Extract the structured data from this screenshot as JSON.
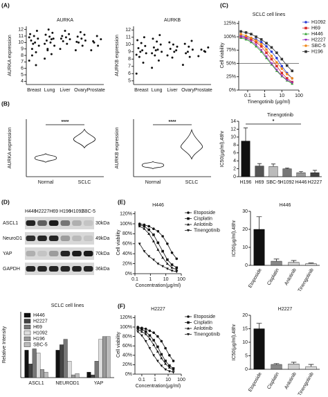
{
  "panel_labels": [
    "(A)",
    "(B)",
    "(C)",
    "(D)",
    "(E)",
    "(F)"
  ],
  "blot": {
    "columns": [
      "H446",
      "H2227",
      "H69",
      "H196",
      "H1092",
      "SBC-5"
    ],
    "rows": [
      "ASCL1",
      "NeuroD1",
      "YAP",
      "GAPDH"
    ],
    "kda": [
      "30kDa",
      "49kDa",
      "70kDa",
      "36kDa"
    ]
  },
  "chart_data": [
    {
      "type": "strip",
      "title": "AURKA",
      "ylabel": "AURKA expression",
      "categories": [
        "Breast",
        "Lung",
        "Liver",
        "Ovary",
        "Prostate"
      ],
      "values": [
        [
          7.2,
          8.5,
          9,
          9.5,
          10,
          10.3,
          10.6,
          11,
          11.3,
          11.8,
          9.8,
          10.8,
          6.5,
          8
        ],
        [
          7.5,
          8.2,
          9,
          9.5,
          10,
          10.3,
          10.6,
          10.9,
          11.2,
          11.5,
          12,
          9.8,
          10.5,
          8.8
        ],
        [
          9,
          9.8,
          10.2,
          10.5,
          10.8,
          11,
          11.3,
          11.8,
          10.6
        ],
        [
          8.8,
          9.5,
          10,
          10.3,
          10.6,
          10.9,
          11.2,
          11.6,
          10.1
        ],
        [
          8.8,
          9.5,
          10,
          10.5,
          11,
          10.2
        ]
      ],
      "ylim": [
        3.5,
        12.5
      ],
      "yticks": [
        4,
        5,
        6,
        7,
        8,
        9,
        10,
        11,
        12
      ],
      "color": "#111111"
    },
    {
      "type": "strip",
      "title": "AURKB",
      "ylabel": "AURKB expression",
      "categories": [
        "Breast",
        "Lung",
        "Liver",
        "Ovary",
        "Prostate"
      ],
      "values": [
        [
          6,
          7.5,
          8.3,
          8.8,
          9.2,
          9.5,
          9.8,
          10.2,
          10.6,
          11,
          9,
          8.6
        ],
        [
          6.8,
          7.8,
          8.5,
          9,
          9.3,
          9.6,
          10,
          10.4,
          10.8,
          11.3,
          9.2,
          8.8
        ],
        [
          8.5,
          9,
          9.4,
          9.7,
          10,
          10.3,
          9.2,
          8.2
        ],
        [
          7.2,
          8.3,
          8.8,
          9.3,
          9.7,
          10.1,
          10.5,
          9
        ],
        [
          8.4,
          9,
          9.3,
          9.6,
          9.1
        ]
      ],
      "ylim": [
        4.5,
        12.5
      ],
      "yticks": [
        5,
        6,
        7,
        8,
        9,
        10,
        11,
        12
      ],
      "color": "#111111"
    },
    {
      "type": "violin",
      "ylabel": "AURKA  expression",
      "categories": [
        "Normal",
        "SCLC"
      ],
      "values": [
        [
          5.0,
          5.6,
          6.2
        ],
        [
          7.0,
          8.2,
          9.6
        ]
      ],
      "ylim": [
        3,
        11
      ],
      "annotation": "****"
    },
    {
      "type": "violin",
      "ylabel": "AURKB  expression",
      "categories": [
        "Normal",
        "SCLC"
      ],
      "values": [
        [
          3.9,
          4.3,
          4.7
        ],
        [
          5.0,
          6.4,
          8.3
        ]
      ],
      "ylim": [
        3,
        9.5
      ],
      "annotation": "****"
    },
    {
      "type": "line",
      "title": "SCLC cell  lines",
      "xlabel": "Tinengotinib (μg/ml)",
      "ylabel": "Cell viability",
      "xscale": "log",
      "xlim": [
        0.03,
        100
      ],
      "xticks": [
        0.1,
        1,
        10,
        100
      ],
      "ylim": [
        0,
        130
      ],
      "yticks": [
        {
          "value": 0,
          "label": "0%"
        },
        {
          "value": 25,
          "label": "25%"
        },
        {
          "value": 50,
          "label": "50%"
        },
        {
          "value": 75,
          "label": "75%"
        },
        {
          "value": 100,
          "label": "100%"
        },
        {
          "value": 125,
          "label": "125%"
        }
      ],
      "hline": 50,
      "legend": "right",
      "x": [
        0.04,
        0.08,
        0.16,
        0.31,
        0.63,
        1.25,
        2.5,
        5,
        10,
        20,
        40
      ],
      "series": [
        {
          "name": "H1092",
          "color": "#2b3fd6",
          "marker": "circle",
          "values": [
            102,
            100,
            98,
            95,
            90,
            82,
            72,
            60,
            45,
            32,
            22
          ]
        },
        {
          "name": "H69",
          "color": "#d62b2b",
          "marker": "square",
          "values": [
            100,
            98,
            95,
            90,
            82,
            70,
            58,
            45,
            32,
            22,
            15
          ]
        },
        {
          "name": "H446",
          "color": "#2ca02c",
          "marker": "triangle",
          "values": [
            98,
            95,
            90,
            82,
            72,
            60,
            48,
            36,
            26,
            18,
            12
          ]
        },
        {
          "name": "H2227",
          "color": "#9b30c0",
          "marker": "triangle-down",
          "values": [
            100,
            97,
            92,
            85,
            75,
            63,
            50,
            38,
            27,
            19,
            14
          ]
        },
        {
          "name": "SBC-5",
          "color": "#f08a1c",
          "marker": "circle",
          "values": [
            105,
            102,
            98,
            93,
            86,
            76,
            64,
            52,
            40,
            30,
            22
          ]
        },
        {
          "name": "H196",
          "color": "#333333",
          "marker": "square",
          "values": [
            110,
            108,
            105,
            100,
            95,
            88,
            80,
            70,
            58,
            46,
            36
          ]
        }
      ]
    },
    {
      "type": "bar",
      "title": "Tinengotinib",
      "ylabel": "IC50(μg/ml),48hr",
      "categories": [
        "H196",
        "H69",
        "SBC-5",
        "H1092",
        "H446",
        "H2227"
      ],
      "values": [
        9,
        2.7,
        2.6,
        2.0,
        1.0,
        1.0
      ],
      "errors": [
        3.3,
        0.6,
        0.6,
        0.2,
        0.3,
        0.6
      ],
      "colors": [
        "#111111",
        "#555555",
        "#bbbbbb",
        "#777777",
        "#999999",
        "#444444"
      ],
      "ylim": [
        0,
        14
      ],
      "yticks": [
        0,
        2,
        4,
        6,
        8,
        10,
        12,
        14
      ],
      "annotation": "*",
      "annotation_span": [
        0,
        4
      ]
    },
    {
      "type": "grouped_bar",
      "title": "SCLC cell  lines",
      "ylabel": "Relative Intensity",
      "categories": [
        "ASCL1",
        "NEUROD1",
        "YAP"
      ],
      "ylim": [
        0,
        2.4
      ],
      "legend": "upper left",
      "series": [
        {
          "name": "H446",
          "color": "#111111",
          "values": [
            1.0,
            1.0,
            0.2
          ]
        },
        {
          "name": "H2227",
          "color": "#444444",
          "values": [
            0.5,
            1.2,
            0.1
          ]
        },
        {
          "name": "H69",
          "color": "#777777",
          "values": [
            1.05,
            1.4,
            0.6
          ]
        },
        {
          "name": "H1092",
          "color": "#dddddd",
          "values": [
            0.9,
            0.6,
            1.4
          ]
        },
        {
          "name": "H196",
          "color": "#999999",
          "values": [
            0.3,
            0.1,
            1.5
          ]
        },
        {
          "name": "SBC-5",
          "color": "#bbbbbb",
          "values": [
            0.2,
            0.15,
            1.5
          ]
        }
      ]
    },
    {
      "type": "line",
      "title": "H446",
      "xlabel": "Concentration(μg/ml)",
      "ylabel": "Cell viability",
      "xscale": "log",
      "xlim": [
        0.1,
        100
      ],
      "xticks": [
        0.1,
        1,
        10,
        100
      ],
      "ylim": [
        0,
        125
      ],
      "yticks": [
        {
          "value": 0,
          "label": "0%"
        },
        {
          "value": 20,
          "label": "20%"
        },
        {
          "value": 40,
          "label": "40%"
        },
        {
          "value": 60,
          "label": "60%"
        },
        {
          "value": 80,
          "label": "80%"
        },
        {
          "value": 100,
          "label": "100%"
        },
        {
          "value": 120,
          "label": "120%"
        }
      ],
      "legend": "right",
      "x": [
        0.2,
        0.4,
        0.8,
        1.6,
        3.1,
        6.25,
        12.5,
        25,
        50
      ],
      "series": [
        {
          "name": "Etoposide",
          "color": "#111111",
          "marker": "circle",
          "values": [
            100,
            98,
            95,
            90,
            85,
            75,
            60,
            42,
            30
          ]
        },
        {
          "name": "Cisplatin",
          "color": "#111111",
          "marker": "square",
          "values": [
            98,
            95,
            88,
            78,
            62,
            45,
            28,
            18,
            12
          ]
        },
        {
          "name": "Anlotinib",
          "color": "#111111",
          "marker": "triangle",
          "values": [
            95,
            90,
            80,
            65,
            48,
            32,
            20,
            12,
            8
          ]
        },
        {
          "name": "Tinengotinib",
          "color": "#111111",
          "marker": "triangle-down",
          "values": [
            60,
            45,
            35,
            28,
            20,
            15,
            10,
            6,
            4
          ]
        }
      ]
    },
    {
      "type": "bar",
      "title": "H446",
      "ylabel": "IC50(μg/ml),48hr",
      "categories": [
        "Etoposide",
        "Cisplatin",
        "Anlotinib",
        "Tinengotinib"
      ],
      "values": [
        20,
        2.3,
        1.7,
        1.0
      ],
      "errors": [
        7,
        1.2,
        1,
        0.3
      ],
      "colors": [
        "#111111",
        "#888888",
        "#cccccc",
        "#dddddd"
      ],
      "ylim": [
        0,
        30
      ],
      "yticks": [
        0,
        10,
        20,
        30
      ]
    },
    {
      "type": "line",
      "title": "H2227",
      "xlabel": "Concentration(μg/ml)",
      "ylabel": "Cell viability",
      "xscale": "log",
      "xlim": [
        0.03,
        100
      ],
      "xticks": [
        0.1,
        1,
        10,
        100
      ],
      "ylim": [
        0,
        125
      ],
      "yticks": [
        {
          "value": 0,
          "label": "0%"
        },
        {
          "value": 20,
          "label": "20%"
        },
        {
          "value": 40,
          "label": "40%"
        },
        {
          "value": 60,
          "label": "60%"
        },
        {
          "value": 80,
          "label": "80%"
        },
        {
          "value": 100,
          "label": "100%"
        },
        {
          "value": 120,
          "label": "120%"
        }
      ],
      "legend": "right",
      "x": [
        0.05,
        0.1,
        0.2,
        0.4,
        0.8,
        1.6,
        3.1,
        6.25,
        12.5,
        25
      ],
      "series": [
        {
          "name": "Etoposide",
          "color": "#111111",
          "marker": "circle",
          "values": [
            100,
            98,
            96,
            92,
            88,
            80,
            70,
            55,
            40,
            28
          ]
        },
        {
          "name": "Cisplatin",
          "color": "#111111",
          "marker": "square",
          "values": [
            98,
            95,
            90,
            82,
            72,
            58,
            42,
            28,
            18,
            12
          ]
        },
        {
          "name": "Anlotinib",
          "color": "#111111",
          "marker": "triangle",
          "values": [
            95,
            90,
            85,
            75,
            62,
            48,
            34,
            22,
            14,
            9
          ]
        },
        {
          "name": "Tinengotinib",
          "color": "#111111",
          "marker": "triangle-down",
          "values": [
            90,
            82,
            70,
            55,
            40,
            28,
            18,
            10,
            6,
            4
          ]
        }
      ]
    },
    {
      "type": "bar",
      "title": "H2227",
      "ylabel": "IC50(μg/ml),48hr",
      "categories": [
        "Etoposide",
        "Cisplatin",
        "Anlotinib",
        "Tinengotinib"
      ],
      "values": [
        15,
        1.8,
        2.0,
        1.0
      ],
      "errors": [
        2,
        0.3,
        0.6,
        0.8
      ],
      "colors": [
        "#111111",
        "#888888",
        "#cccccc",
        "#dddddd"
      ],
      "ylim": [
        0,
        20
      ],
      "yticks": [
        0,
        5,
        10,
        15,
        20
      ]
    }
  ]
}
